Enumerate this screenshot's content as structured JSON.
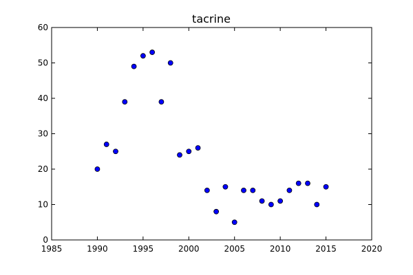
{
  "chart_data": {
    "type": "scatter",
    "title": "tacrine",
    "xlabel": "",
    "ylabel": "",
    "xlim": [
      1985,
      2020
    ],
    "ylim": [
      0,
      60
    ],
    "xticks": [
      1985,
      1990,
      1995,
      2000,
      2005,
      2010,
      2015,
      2020
    ],
    "yticks": [
      0,
      10,
      20,
      30,
      40,
      50,
      60
    ],
    "grid": false,
    "marker_color": "#0000ff",
    "marker_edge_color": "#000000",
    "series": [
      {
        "points": [
          {
            "x": 1990,
            "y": 20
          },
          {
            "x": 1991,
            "y": 27
          },
          {
            "x": 1992,
            "y": 25
          },
          {
            "x": 1993,
            "y": 39
          },
          {
            "x": 1994,
            "y": 49
          },
          {
            "x": 1995,
            "y": 52
          },
          {
            "x": 1996,
            "y": 53
          },
          {
            "x": 1997,
            "y": 39
          },
          {
            "x": 1998,
            "y": 50
          },
          {
            "x": 1999,
            "y": 24
          },
          {
            "x": 2000,
            "y": 25
          },
          {
            "x": 2001,
            "y": 26
          },
          {
            "x": 2002,
            "y": 14
          },
          {
            "x": 2003,
            "y": 8
          },
          {
            "x": 2004,
            "y": 15
          },
          {
            "x": 2005,
            "y": 5
          },
          {
            "x": 2006,
            "y": 14
          },
          {
            "x": 2007,
            "y": 14
          },
          {
            "x": 2008,
            "y": 11
          },
          {
            "x": 2009,
            "y": 10
          },
          {
            "x": 2010,
            "y": 11
          },
          {
            "x": 2011,
            "y": 14
          },
          {
            "x": 2012,
            "y": 16
          },
          {
            "x": 2013,
            "y": 16
          },
          {
            "x": 2014,
            "y": 10
          },
          {
            "x": 2015,
            "y": 15
          }
        ]
      }
    ]
  }
}
